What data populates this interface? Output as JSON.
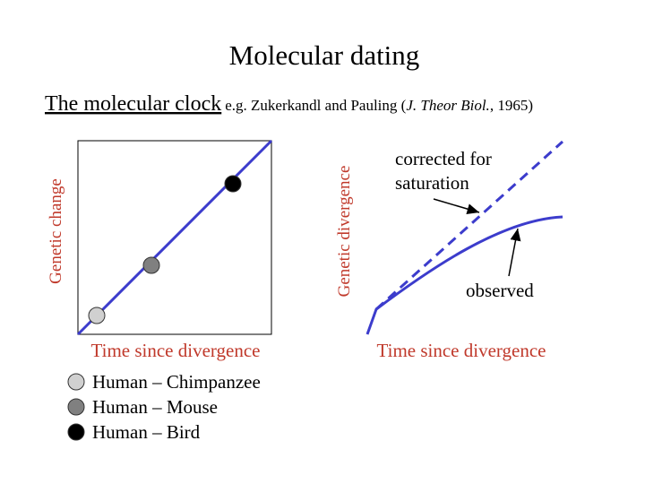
{
  "header": {
    "title": "Molecular dating",
    "subtitle": {
      "main": "The molecular clock",
      "prefix": "e.g. Zukerkandl and Pauling (",
      "journal": "J. Theor Biol.",
      "suffix": ", 1965)"
    }
  },
  "left_panel": {
    "y_label": "Genetic change",
    "x_label": "Time since divergence",
    "legend": [
      {
        "label": "Human – Chimpanzee",
        "color": "#d0d0d0"
      },
      {
        "label": "Human – Mouse",
        "color": "#808080"
      },
      {
        "label": "Human – Bird",
        "color": "#000000"
      }
    ]
  },
  "right_panel": {
    "y_label": "Genetic divergence",
    "x_label": "Time since divergence",
    "annotations": {
      "corrected": [
        "corrected for",
        "saturation"
      ],
      "observed": "observed"
    }
  }
}
